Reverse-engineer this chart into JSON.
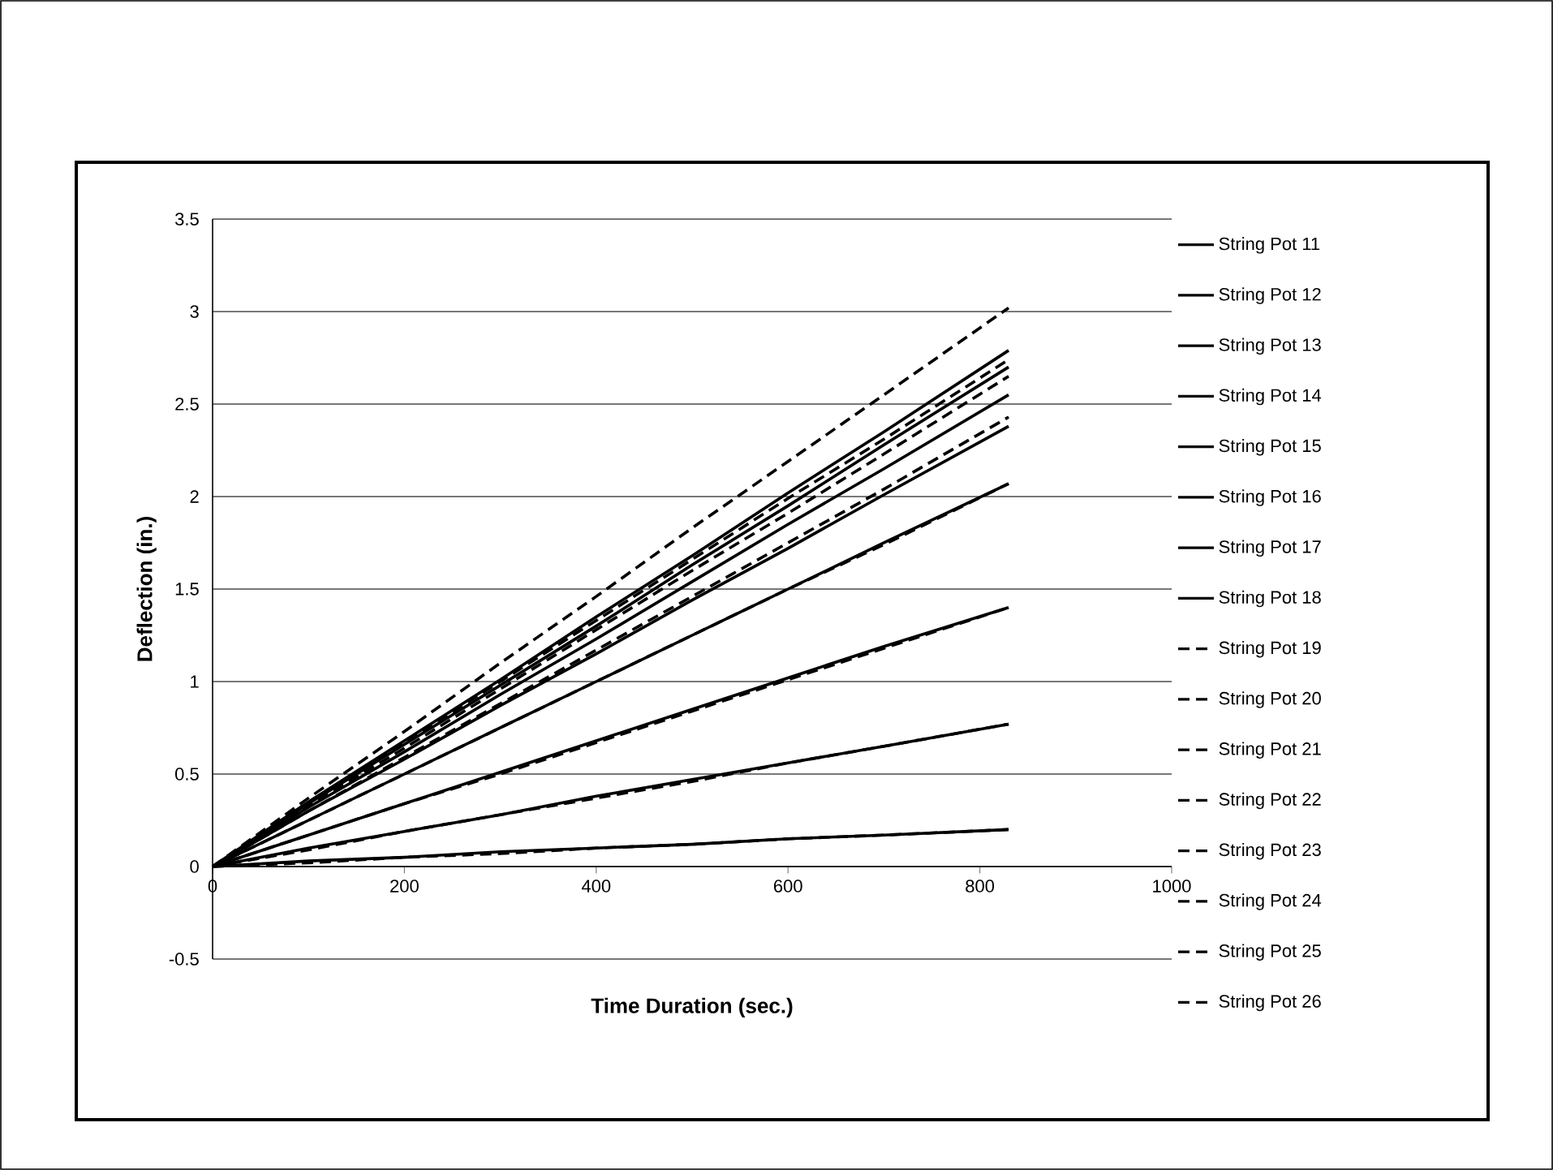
{
  "chart_data": {
    "type": "line",
    "xlabel": "Time Duration (sec.)",
    "ylabel": "Deflection (in.)",
    "x": [
      0,
      100,
      200,
      300,
      400,
      500,
      600,
      700,
      830
    ],
    "xlim": [
      0,
      1000
    ],
    "xticks": [
      0,
      200,
      400,
      600,
      800,
      1000
    ],
    "ylim": [
      -0.5,
      3.5
    ],
    "yticks": [
      -0.5,
      0,
      0.5,
      1,
      1.5,
      2,
      2.5,
      3,
      3.5
    ],
    "grid": "y",
    "legend": "right",
    "series": [
      {
        "name": "String Pot 11",
        "color": "#000000",
        "line_style": "solid",
        "values": [
          0,
          0.03,
          0.05,
          0.08,
          0.1,
          0.12,
          0.15,
          0.17,
          0.2
        ]
      },
      {
        "name": "String Pot 12",
        "color": "#000000",
        "line_style": "solid",
        "values": [
          0,
          0.1,
          0.19,
          0.28,
          0.38,
          0.47,
          0.56,
          0.65,
          0.77
        ]
      },
      {
        "name": "String Pot 13",
        "color": "#000000",
        "line_style": "solid",
        "values": [
          0,
          0.17,
          0.34,
          0.51,
          0.68,
          0.85,
          1.02,
          1.19,
          1.4
        ]
      },
      {
        "name": "String Pot 14",
        "color": "#000000",
        "line_style": "solid",
        "values": [
          0,
          0.25,
          0.5,
          0.75,
          1.0,
          1.25,
          1.5,
          1.75,
          2.07
        ]
      },
      {
        "name": "String Pot 15",
        "color": "#000000",
        "line_style": "solid",
        "values": [
          0,
          0.3,
          0.58,
          0.87,
          1.15,
          1.44,
          1.72,
          2.01,
          2.38
        ]
      },
      {
        "name": "String Pot 16",
        "color": "#000000",
        "line_style": "solid",
        "values": [
          0,
          0.32,
          0.62,
          0.93,
          1.23,
          1.54,
          1.85,
          2.15,
          2.55
        ]
      },
      {
        "name": "String Pot 17",
        "color": "#000000",
        "line_style": "solid",
        "values": [
          0,
          0.34,
          0.66,
          0.98,
          1.3,
          1.63,
          1.95,
          2.28,
          2.7
        ]
      },
      {
        "name": "String Pot 18",
        "color": "#000000",
        "line_style": "solid",
        "values": [
          0,
          0.35,
          0.68,
          1.01,
          1.35,
          1.68,
          2.02,
          2.35,
          2.79
        ]
      },
      {
        "name": "String Pot 19",
        "color": "#000000",
        "line_style": "dashed",
        "values": [
          0,
          0.02,
          0.05,
          0.07,
          0.1,
          0.12,
          0.15,
          0.17,
          0.2
        ]
      },
      {
        "name": "String Pot 20",
        "color": "#000000",
        "line_style": "dashed",
        "values": [
          0,
          0.09,
          0.19,
          0.28,
          0.37,
          0.46,
          0.56,
          0.65,
          0.77
        ]
      },
      {
        "name": "String Pot 21",
        "color": "#000000",
        "line_style": "dashed",
        "values": [
          0,
          0.17,
          0.34,
          0.5,
          0.67,
          0.84,
          1.01,
          1.18,
          1.4
        ]
      },
      {
        "name": "String Pot 22",
        "color": "#000000",
        "line_style": "dashed",
        "values": [
          0,
          0.25,
          0.5,
          0.75,
          1.0,
          1.25,
          1.5,
          1.74,
          2.07
        ]
      },
      {
        "name": "String Pot 23",
        "color": "#000000",
        "line_style": "dashed",
        "values": [
          0,
          0.3,
          0.59,
          0.88,
          1.17,
          1.46,
          1.75,
          2.04,
          2.43
        ]
      },
      {
        "name": "String Pot 24",
        "color": "#000000",
        "line_style": "dashed",
        "values": [
          0,
          0.33,
          0.64,
          0.96,
          1.28,
          1.6,
          1.91,
          2.23,
          2.65
        ]
      },
      {
        "name": "String Pot 25",
        "color": "#000000",
        "line_style": "dashed",
        "values": [
          0,
          0.34,
          0.67,
          1.0,
          1.33,
          1.66,
          1.99,
          2.31,
          2.74
        ]
      },
      {
        "name": "String Pot 26",
        "color": "#000000",
        "line_style": "dashed",
        "values": [
          0,
          0.37,
          0.73,
          1.1,
          1.46,
          1.83,
          2.19,
          2.55,
          3.02
        ]
      }
    ]
  }
}
